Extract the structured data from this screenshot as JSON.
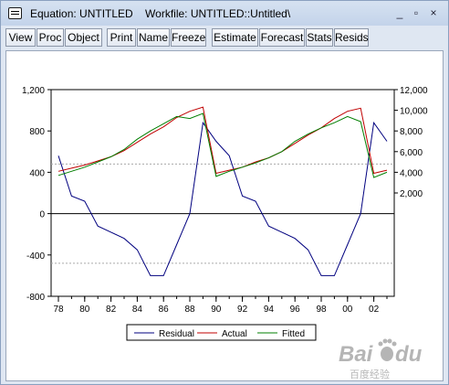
{
  "window": {
    "title": "Equation: UNTITLED    Workfile: UNTITLED::Untitled\\",
    "minimize_symbol": "_",
    "maximize_symbol": "▫",
    "close_symbol": "×"
  },
  "toolbar": [
    {
      "id": "view",
      "label": "View"
    },
    {
      "id": "proc",
      "label": "Proc"
    },
    {
      "id": "object",
      "label": "Object"
    },
    {
      "id": "print",
      "label": "Print"
    },
    {
      "id": "name",
      "label": "Name"
    },
    {
      "id": "freeze",
      "label": "Freeze"
    },
    {
      "id": "estimate",
      "label": "Estimate"
    },
    {
      "id": "forecast",
      "label": "Forecast"
    },
    {
      "id": "stats",
      "label": "Stats"
    },
    {
      "id": "resids",
      "label": "Resids"
    }
  ],
  "chart_data": {
    "type": "line",
    "x": [
      1978,
      1979,
      1980,
      1981,
      1982,
      1983,
      1984,
      1985,
      1986,
      1987,
      1988,
      1989,
      1990,
      1991,
      1992,
      1993,
      1994,
      1995,
      1996,
      1997,
      1998,
      1999,
      2000,
      2001,
      2002,
      2003
    ],
    "x_tick_labels": [
      "78",
      "80",
      "82",
      "84",
      "86",
      "88",
      "90",
      "92",
      "94",
      "96",
      "98",
      "00",
      "02"
    ],
    "left_axis": {
      "ticks": [
        "-800",
        "-400",
        "0",
        "400",
        "800",
        "1,200"
      ],
      "ylim": [
        -800,
        1200
      ],
      "tick_values": [
        -800,
        -400,
        0,
        400,
        800,
        1200
      ]
    },
    "right_axis": {
      "ticks": [
        "2,000",
        "4,000",
        "6,000",
        "8,000",
        "10,000",
        "12,000"
      ],
      "ylim": [
        -8000,
        12000
      ],
      "tick_values": [
        2000,
        4000,
        6000,
        8000,
        10000,
        12000
      ]
    },
    "zero_line": 0,
    "band_lines": [
      480,
      -480
    ],
    "grid": false,
    "legend_position": "bottom-center",
    "series": [
      {
        "name": "Residual",
        "axis": "left",
        "color": "#00007f",
        "values": [
          560,
          170,
          120,
          -120,
          -180,
          -240,
          -350,
          -600,
          -600,
          -300,
          0,
          880,
          700,
          560,
          170,
          120,
          -120,
          -180,
          -240,
          -350,
          -600,
          -600,
          -300,
          0,
          880,
          700
        ]
      },
      {
        "name": "Actual",
        "axis": "right",
        "color": "#c00000",
        "values": [
          4100,
          4400,
          4700,
          5100,
          5500,
          6100,
          6900,
          7700,
          8400,
          9300,
          9900,
          10300,
          3900,
          4200,
          4500,
          5000,
          5400,
          6000,
          6800,
          7600,
          8300,
          9200,
          9900,
          10200,
          3900,
          4200
        ]
      },
      {
        "name": "Fitted",
        "axis": "right",
        "color": "#007f00",
        "values": [
          3700,
          4100,
          4500,
          5000,
          5500,
          6200,
          7200,
          8000,
          8700,
          9400,
          9200,
          9700,
          3600,
          4100,
          4500,
          4900,
          5400,
          6000,
          7000,
          7700,
          8300,
          8800,
          9400,
          8900,
          3500,
          4000
        ]
      }
    ]
  },
  "watermark": {
    "text": "Bai",
    "paw": "du",
    "caption": "百度经验"
  }
}
